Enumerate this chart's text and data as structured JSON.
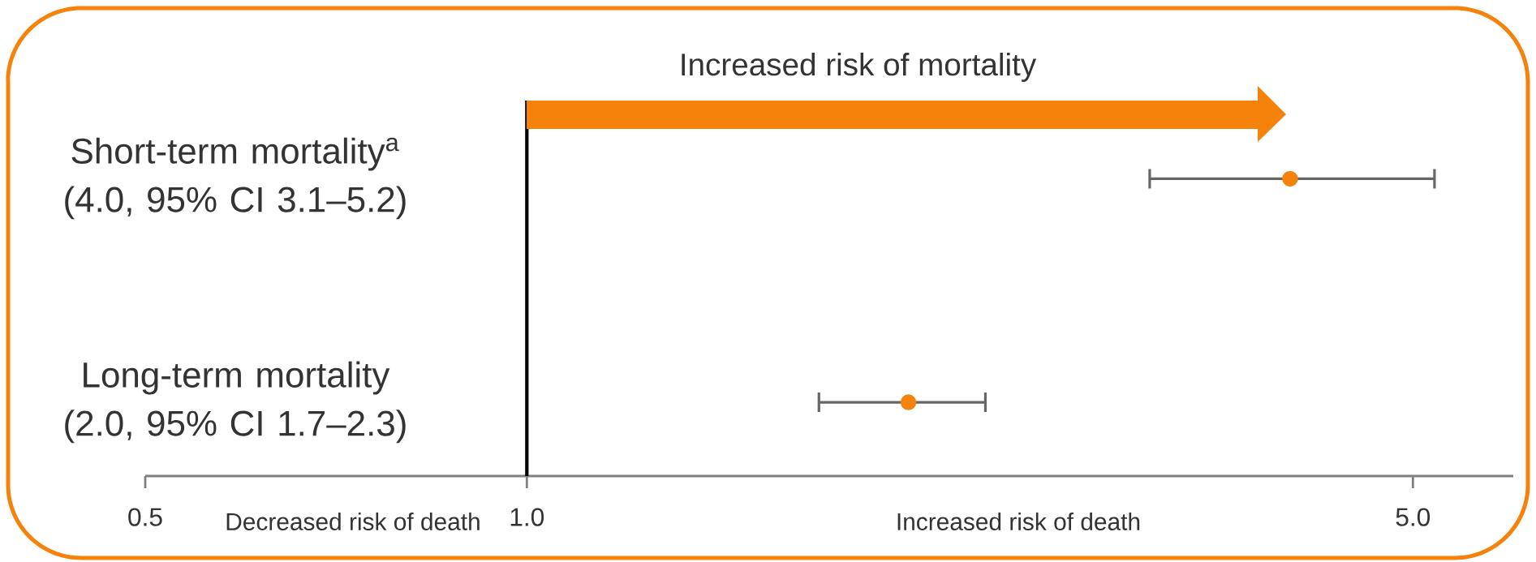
{
  "chart_data": {
    "type": "scatter",
    "orientation": "horizontal",
    "categories": [
      "Short-term mortality$^{a}$ (4.0, 95% CI 3.1–5.2)",
      "Long-term mortality (2.0, 95% CI 1.7–2.3)"
    ],
    "values": [
      4.0,
      2.0
    ],
    "errors": [
      [
        3.1,
        5.2
      ],
      [
        1.7,
        2.3
      ]
    ],
    "color": "#f5820a",
    "marker": "circle",
    "log": "x",
    "xlim": [
      0.5,
      6
    ],
    "xticks": [
      {
        "value": 0.5,
        "label": "0.5"
      },
      {
        "value": 1,
        "label": "1.0"
      },
      {
        "value": 5,
        "label": "5.0"
      }
    ],
    "ref_lines": [
      {
        "axis": "x",
        "value": 1.0,
        "color": "#000000"
      }
    ],
    "annotations": [
      "Increased risk of mortality",
      "Decreased risk of death",
      "Increased risk of death"
    ]
  }
}
